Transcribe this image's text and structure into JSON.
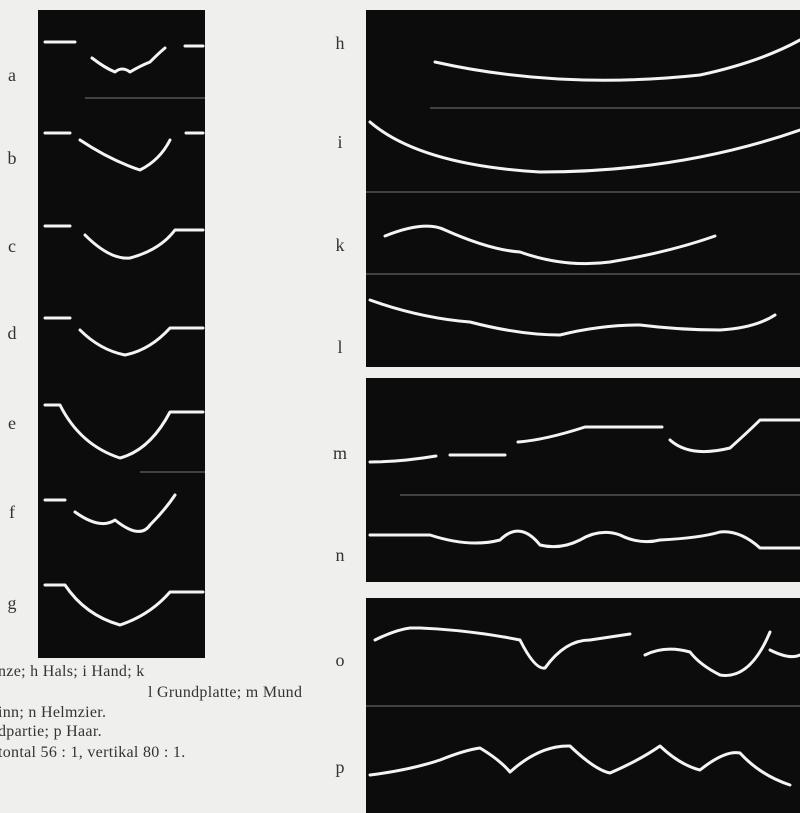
{
  "labels": {
    "left": [
      "a",
      "b",
      "c",
      "d",
      "e",
      "f",
      "g"
    ],
    "right": [
      "h",
      "i",
      "k",
      "l",
      "m",
      "n",
      "o",
      "p"
    ]
  },
  "caption": {
    "lines": [
      "nze; h Hals; i Hand; k",
      "l Grundplatte; m Mund",
      "inn; n Helmzier.",
      "dpartie; p Haar.",
      "tontal 56 : 1, vertikal 80 : 1."
    ]
  }
}
